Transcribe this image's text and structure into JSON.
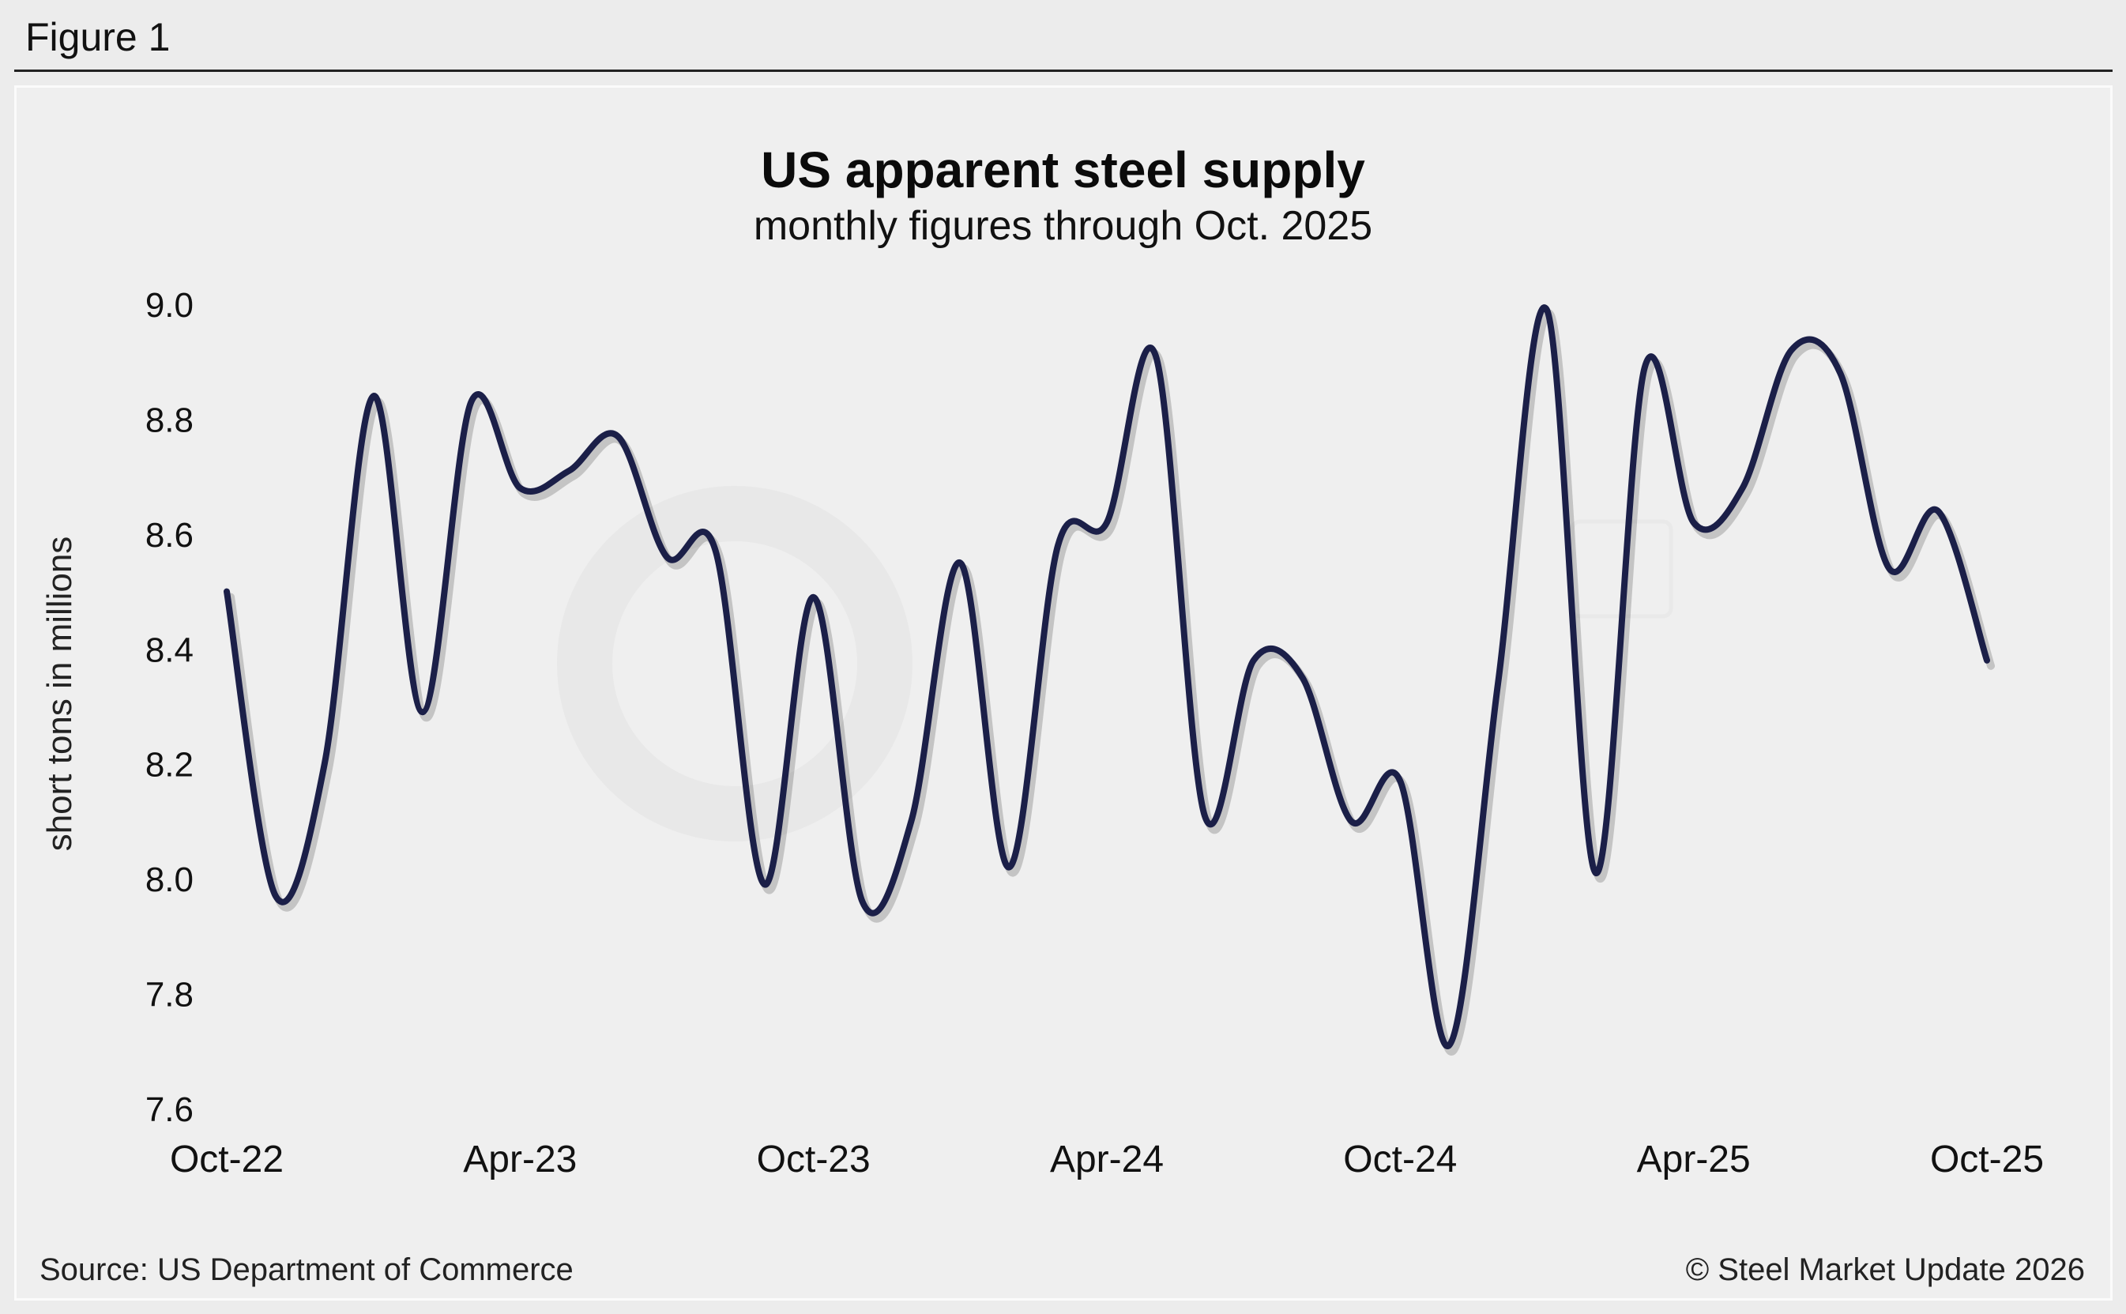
{
  "figure_label": "Figure 1",
  "source": "Source: US Department of Commerce",
  "copyright": "© Steel Market Update 2026",
  "colors": {
    "line": "#1b1f48",
    "background": "#efefef"
  },
  "chart_data": {
    "type": "line",
    "title": "US apparent steel supply",
    "subtitle": "monthly figures through Oct. 2025",
    "ylabel": "short tons in millions",
    "xlabel": "",
    "ylim": [
      7.6,
      9.0
    ],
    "yticks": [
      "9.0",
      "8.8",
      "8.6",
      "8.4",
      "8.2",
      "8.0",
      "7.8",
      "7.6"
    ],
    "xtick_labels": [
      "Oct-22",
      "Apr-23",
      "Oct-23",
      "Apr-24",
      "Oct-24",
      "Apr-25",
      "Oct-25"
    ],
    "grid": false,
    "x": [
      "Oct-22",
      "Nov-22",
      "Dec-22",
      "Jan-23",
      "Feb-23",
      "Mar-23",
      "Apr-23",
      "May-23",
      "Jun-23",
      "Jul-23",
      "Aug-23",
      "Sep-23",
      "Oct-23",
      "Nov-23",
      "Dec-23",
      "Jan-24",
      "Feb-24",
      "Mar-24",
      "Apr-24",
      "May-24",
      "Jun-24",
      "Jul-24",
      "Aug-24",
      "Sep-24",
      "Oct-24",
      "Nov-24",
      "Dec-24",
      "Jan-25",
      "Feb-25",
      "Mar-25",
      "Apr-25",
      "May-25",
      "Jun-25",
      "Jul-25",
      "Aug-25",
      "Sep-25",
      "Oct-25"
    ],
    "series": [
      {
        "values": [
          8.5,
          7.97,
          8.2,
          8.84,
          8.29,
          8.83,
          8.68,
          8.71,
          8.77,
          8.56,
          8.57,
          7.99,
          8.49,
          7.96,
          8.1,
          8.55,
          8.02,
          8.58,
          8.62,
          8.91,
          8.11,
          8.38,
          8.35,
          8.1,
          8.17,
          7.71,
          8.34,
          8.99,
          8.01,
          8.89,
          8.62,
          8.68,
          8.92,
          8.88,
          8.54,
          8.64,
          8.38
        ]
      }
    ]
  }
}
